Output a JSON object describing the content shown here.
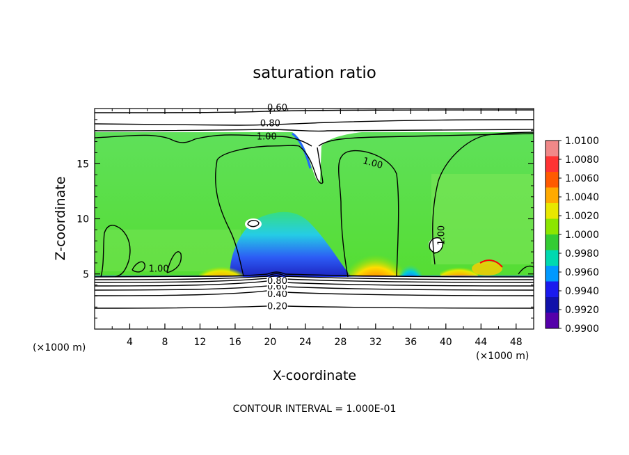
{
  "chart_data": {
    "type": "heatmap",
    "title": "saturation ratio",
    "xlabel": "X-coordinate",
    "ylabel": "Z-coordinate",
    "x_unit": "(×1000 m)",
    "y_unit": "(×1000 m)",
    "xlim": [
      0,
      50
    ],
    "ylim": [
      0,
      20
    ],
    "x_ticks": [
      "4",
      "8",
      "12",
      "16",
      "20",
      "24",
      "28",
      "32",
      "36",
      "40",
      "44",
      "48"
    ],
    "y_ticks": [
      "5",
      "10",
      "15"
    ],
    "colorbar": {
      "ticks": [
        "1.0100",
        "1.0080",
        "1.0060",
        "1.0040",
        "1.0020",
        "1.0000",
        "0.9980",
        "0.9960",
        "0.9940",
        "0.9920",
        "0.9900"
      ],
      "colors": [
        "#f08888",
        "#ff3333",
        "#ff5a00",
        "#ffaa00",
        "#e8e800",
        "#8ce600",
        "#33cc33",
        "#00d9b0",
        "#0099ff",
        "#1a1aee",
        "#1111aa",
        "#5500aa"
      ],
      "min": 0.99,
      "max": 1.01
    },
    "contour_labels": [
      {
        "text": "0.20",
        "x": 20.8,
        "z": 1.8
      },
      {
        "text": "0.40",
        "x": 20.8,
        "z": 2.9
      },
      {
        "text": "0.60",
        "x": 20.8,
        "z": 3.6
      },
      {
        "text": "0.80",
        "x": 20.8,
        "z": 4.1
      },
      {
        "text": "1.00",
        "x": 7.3,
        "z": 5.2
      },
      {
        "text": "1.00",
        "x": 19.6,
        "z": 17.2
      },
      {
        "text": "0.80",
        "x": 20.0,
        "z": 18.4
      },
      {
        "text": "0.60",
        "x": 20.8,
        "z": 19.8
      },
      {
        "text": "1.00",
        "x": 31.6,
        "z": 14.8
      },
      {
        "text": "1.00",
        "x": 39.8,
        "z": 8.5
      }
    ],
    "contour_interval_note": "CONTOUR INTERVAL = 1.000E-01",
    "grid": false,
    "legend": "right colorbar"
  }
}
